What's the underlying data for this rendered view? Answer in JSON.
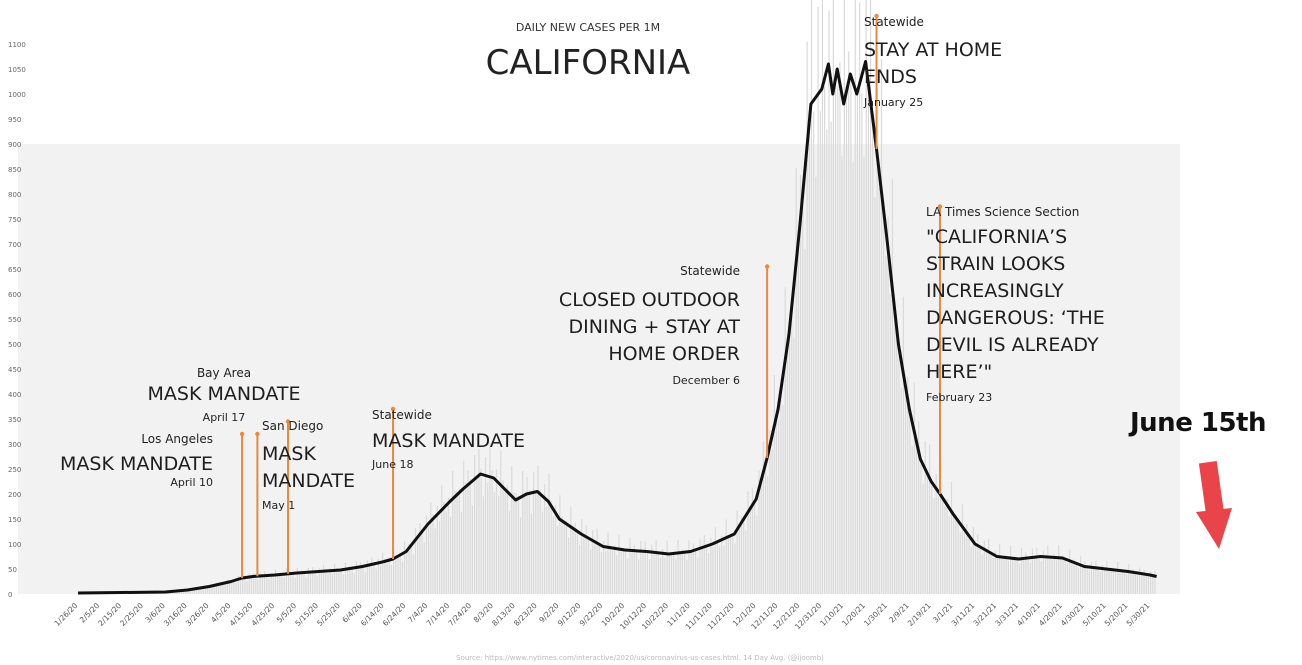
{
  "callout": {
    "text": "June 15th",
    "arrow_color": "#e8444a"
  },
  "source_note": "Source: https://www.nytimes.com/interactive/2020/us/coronavirus-us-cases.html. 14 Day Avg. (@ijoomb)",
  "colors": {
    "line": "#111111",
    "annotation": "#e88a3a",
    "bars": "#dadada",
    "shade": "#f2f2f2"
  },
  "chart_data": {
    "type": "line",
    "title": "CALIFORNIA",
    "subtitle": "DAILY NEW CASES PER 1M",
    "xlabel": "",
    "ylabel": "",
    "ylim": [
      0,
      1100
    ],
    "grid": false,
    "x_ticks": [
      "1/26/20",
      "2/5/20",
      "2/15/20",
      "2/25/20",
      "3/6/20",
      "3/16/20",
      "3/26/20",
      "4/5/20",
      "4/15/20",
      "4/25/20",
      "5/5/20",
      "5/15/20",
      "5/25/20",
      "6/4/20",
      "6/14/20",
      "6/24/20",
      "7/4/20",
      "7/14/20",
      "7/24/20",
      "8/3/20",
      "8/13/20",
      "8/23/20",
      "9/2/20",
      "9/12/20",
      "9/22/20",
      "10/2/20",
      "10/12/20",
      "10/22/20",
      "11/1/20",
      "11/11/20",
      "11/21/20",
      "12/1/20",
      "12/11/20",
      "12/21/20",
      "12/31/20",
      "1/10/21",
      "1/20/21",
      "1/30/21",
      "2/9/21",
      "2/19/21",
      "3/1/21",
      "3/11/21",
      "3/21/21",
      "3/31/21",
      "4/10/21",
      "4/20/21",
      "4/30/21",
      "5/10/21",
      "5/20/21",
      "5/30/21"
    ],
    "y_ticks": [
      0,
      50,
      100,
      150,
      200,
      250,
      300,
      350,
      400,
      450,
      500,
      550,
      600,
      650,
      700,
      750,
      800,
      850,
      900,
      950,
      1000,
      1050,
      1100
    ],
    "series": [
      {
        "x": [
          "1/26/20",
          "2/15/20",
          "3/6/20",
          "3/16/20",
          "3/26/20",
          "4/5/20",
          "4/10/20",
          "4/15/20",
          "4/25/20",
          "5/5/20",
          "5/15/20",
          "5/25/20",
          "6/4/20",
          "6/14/20",
          "6/18/20",
          "6/24/20",
          "7/4/20",
          "7/14/20",
          "7/20/20",
          "7/24/20",
          "7/28/20",
          "8/3/20",
          "8/8/20",
          "8/13/20",
          "8/18/20",
          "8/23/20",
          "8/28/20",
          "9/2/20",
          "9/12/20",
          "9/22/20",
          "10/2/20",
          "10/12/20",
          "10/22/20",
          "11/1/20",
          "11/11/20",
          "11/21/20",
          "12/1/20",
          "12/6/20",
          "12/11/20",
          "12/16/20",
          "12/21/20",
          "12/26/20",
          "12/31/20",
          "1/3/21",
          "1/5/21",
          "1/7/21",
          "1/10/21",
          "1/13/21",
          "1/16/21",
          "1/20/21",
          "1/25/21",
          "1/30/21",
          "2/4/21",
          "2/9/21",
          "2/14/21",
          "2/19/21",
          "2/23/21",
          "3/1/21",
          "3/11/21",
          "3/21/21",
          "3/31/21",
          "4/10/21",
          "4/20/21",
          "4/30/21",
          "5/10/21",
          "5/20/21",
          "5/30/21",
          "6/2/21"
        ],
        "values": [
          2,
          3,
          4,
          8,
          15,
          25,
          32,
          35,
          38,
          42,
          45,
          48,
          55,
          65,
          70,
          85,
          140,
          185,
          210,
          225,
          240,
          232,
          210,
          188,
          200,
          205,
          185,
          150,
          120,
          95,
          88,
          85,
          80,
          85,
          100,
          120,
          190,
          272,
          370,
          520,
          740,
          980,
          1010,
          1060,
          1000,
          1050,
          980,
          1040,
          1000,
          1065,
          890,
          700,
          500,
          370,
          270,
          225,
          200,
          160,
          100,
          75,
          70,
          75,
          72,
          55,
          50,
          45,
          38,
          35
        ]
      }
    ],
    "annotations": [
      {
        "x": "4/10/20",
        "y": 320,
        "tag": "Los Angeles",
        "headline": "MASK MANDATE",
        "date": "April 10"
      },
      {
        "x": "4/17/20",
        "y": 320,
        "tag": "Bay Area",
        "headline": "MASK MANDATE",
        "date": "April 17"
      },
      {
        "x": "5/1/20",
        "y": 345,
        "tag": "San Diego",
        "headline": "MASK MANDATE",
        "date": "May 1"
      },
      {
        "x": "6/18/20",
        "y": 370,
        "tag": "Statewide",
        "headline": "MASK MANDATE",
        "date": "June 18"
      },
      {
        "x": "12/6/20",
        "y": 655,
        "tag": "Statewide",
        "headline": "CLOSED OUTDOOR DINING + STAY AT HOME ORDER",
        "date": "December 6"
      },
      {
        "x": "1/25/21",
        "y": 1170,
        "tag": "Statewide",
        "headline": "STAY AT HOME ENDS",
        "date": "January 25"
      },
      {
        "x": "2/23/21",
        "y": 775,
        "tag": "LA Times Science Section",
        "headline": "\"CALIFORNIA'S STRAIN LOOKS INCREASINGLY DANGEROUS: 'THE DEVIL IS ALREADY HERE'\"",
        "date": "February 23"
      }
    ]
  }
}
